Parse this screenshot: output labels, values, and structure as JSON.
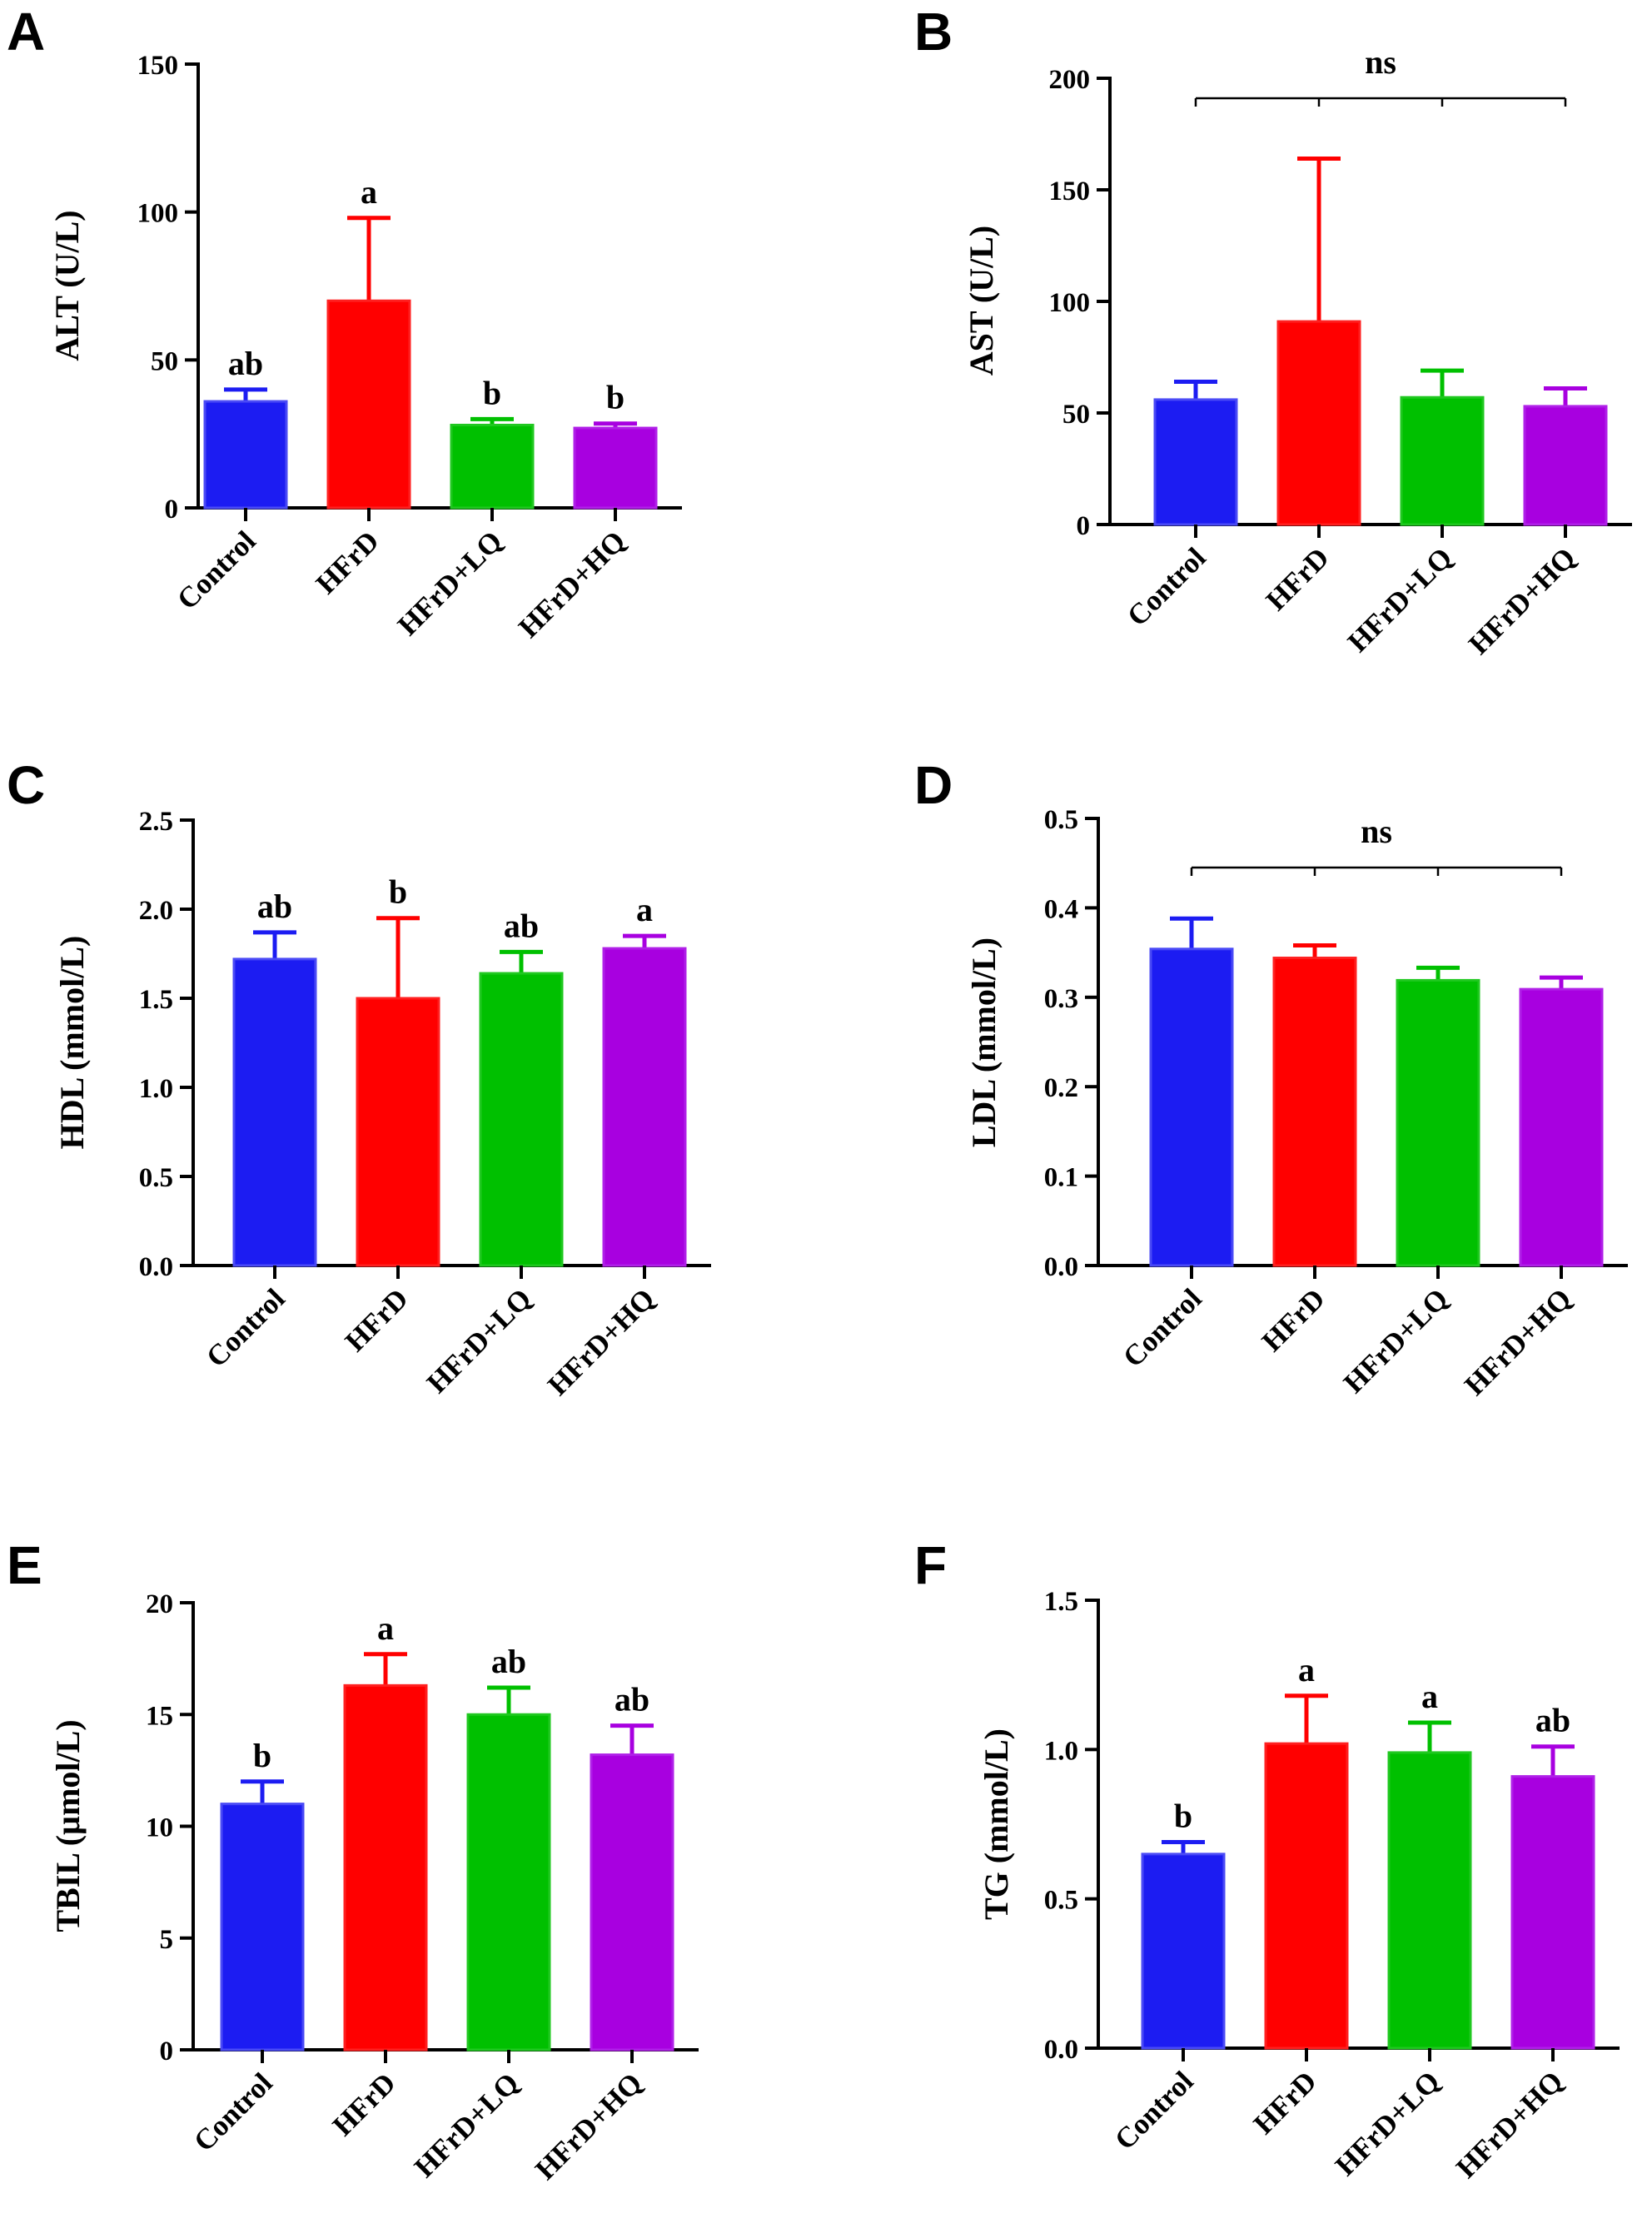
{
  "figure": {
    "categories": [
      "Control",
      "HFrD",
      "HFrD+LQ",
      "HFrD+HQ"
    ],
    "colors": [
      "#1c1cf2",
      "#ff0000",
      "#00c000",
      "#a800e0"
    ],
    "edge_colors": [
      "#4a4af6",
      "#ff2020",
      "#20c820",
      "#b020e8"
    ]
  },
  "chart_data": [
    {
      "panel": "A",
      "type": "bar",
      "xlabel": "",
      "ylabel": "ALT (U/L)",
      "categories": [
        "Control",
        "HFrD",
        "HFrD+LQ",
        "HFrD+HQ"
      ],
      "values": [
        36,
        70,
        28,
        27
      ],
      "errors": [
        4,
        28,
        2,
        1.5
      ],
      "ylim": [
        0,
        150
      ],
      "yticks": [
        0,
        50,
        100,
        150
      ],
      "sig_labels": [
        "ab",
        "a",
        "b",
        "b"
      ],
      "ns": null,
      "grid": false
    },
    {
      "panel": "B",
      "type": "bar",
      "xlabel": "",
      "ylabel": "AST (U/L)",
      "categories": [
        "Control",
        "HFrD",
        "HFrD+LQ",
        "HFrD+HQ"
      ],
      "values": [
        56,
        91,
        57,
        53
      ],
      "errors": [
        8,
        73,
        12,
        8
      ],
      "ylim": [
        0,
        200
      ],
      "yticks": [
        0,
        50,
        100,
        150,
        200
      ],
      "sig_labels": [
        "",
        "",
        "",
        ""
      ],
      "ns": "ns",
      "grid": false
    },
    {
      "panel": "C",
      "type": "bar",
      "xlabel": "",
      "ylabel": "HDL (mmol/L)",
      "categories": [
        "Control",
        "HFrD",
        "HFrD+LQ",
        "HFrD+HQ"
      ],
      "values": [
        1.72,
        1.5,
        1.64,
        1.78
      ],
      "errors": [
        0.15,
        0.45,
        0.12,
        0.07
      ],
      "ylim": [
        0,
        2.5
      ],
      "yticks": [
        "0.0",
        "0.5",
        "1.0",
        "1.5",
        "2.0",
        "2.5"
      ],
      "sig_labels": [
        "ab",
        "b",
        "ab",
        "a"
      ],
      "ns": null,
      "grid": false
    },
    {
      "panel": "D",
      "type": "bar",
      "xlabel": "",
      "ylabel": "LDL (mmol/L)",
      "categories": [
        "Control",
        "HFrD",
        "HFrD+LQ",
        "HFrD+HQ"
      ],
      "values": [
        0.354,
        0.344,
        0.319,
        0.309
      ],
      "errors": [
        0.034,
        0.014,
        0.014,
        0.013
      ],
      "ylim": [
        0,
        0.5
      ],
      "yticks": [
        "0.0",
        "0.1",
        "0.2",
        "0.3",
        "0.4",
        "0.5"
      ],
      "sig_labels": [
        "",
        "",
        "",
        ""
      ],
      "ns": "ns",
      "grid": false
    },
    {
      "panel": "E",
      "type": "bar",
      "xlabel": "",
      "ylabel": "TBIL (µmol/L)",
      "categories": [
        "Control",
        "HFrD",
        "HFrD+LQ",
        "HFrD+HQ"
      ],
      "values": [
        11,
        16.3,
        15,
        13.2
      ],
      "errors": [
        1,
        1.4,
        1.2,
        1.3
      ],
      "ylim": [
        0,
        20
      ],
      "yticks": [
        0,
        5,
        10,
        15,
        20
      ],
      "sig_labels": [
        "b",
        "a",
        "ab",
        "ab"
      ],
      "ns": null,
      "grid": false
    },
    {
      "panel": "F",
      "type": "bar",
      "xlabel": "",
      "ylabel": "TG (mmol/L)",
      "categories": [
        "Control",
        "HFrD",
        "HFrD+LQ",
        "HFrD+HQ"
      ],
      "values": [
        0.65,
        1.02,
        0.99,
        0.91
      ],
      "errors": [
        0.04,
        0.16,
        0.1,
        0.1
      ],
      "ylim": [
        0,
        1.5
      ],
      "yticks": [
        "0.0",
        "0.5",
        "1.0",
        "1.5"
      ],
      "sig_labels": [
        "b",
        "a",
        "a",
        "ab"
      ],
      "ns": null,
      "grid": false
    }
  ]
}
